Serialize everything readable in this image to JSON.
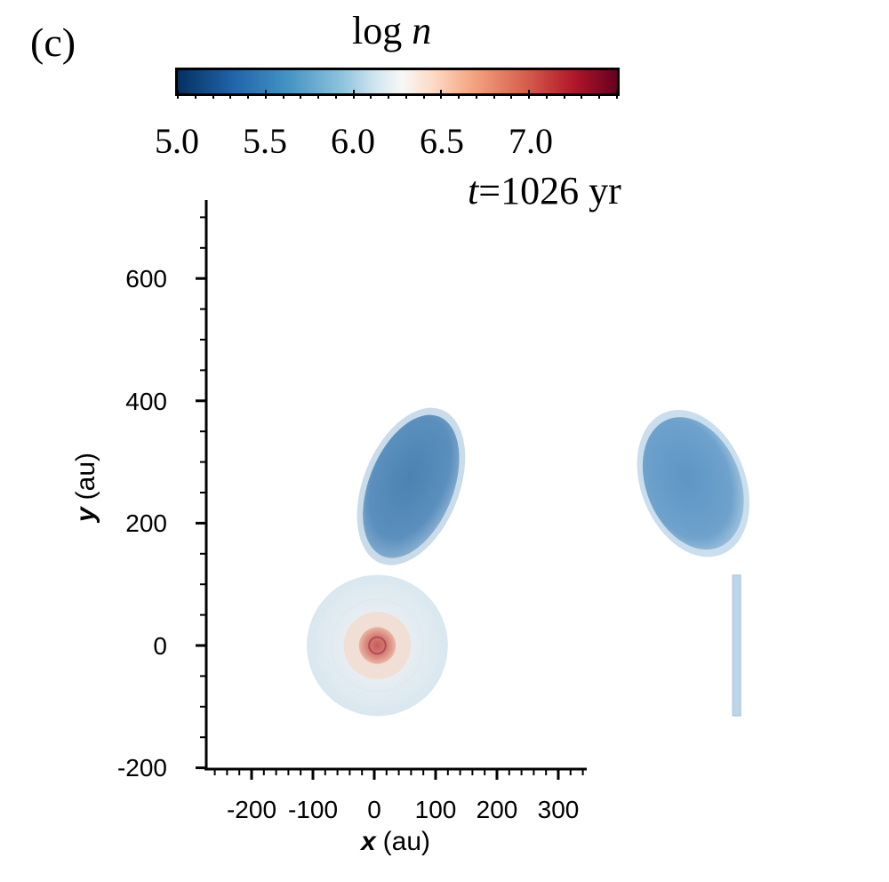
{
  "panel_label": "(c)",
  "colorbar": {
    "label_prefix": "log",
    "label_var": "n",
    "ticks": [
      "5.0",
      "5.5",
      "6.0",
      "6.5",
      "7.0"
    ],
    "range": [
      5.0,
      7.5
    ],
    "colors": [
      "#053061",
      "#2166ac",
      "#4393c3",
      "#92c5de",
      "#d1e5f0",
      "#f7f7f7",
      "#fddbc7",
      "#f4a582",
      "#d6604d",
      "#b2182b",
      "#67001f"
    ]
  },
  "time_label": {
    "var": "t",
    "eq": "=",
    "value": "1026 yr"
  },
  "chart_data": {
    "type": "heatmap",
    "title": "",
    "xlabel_var": "x",
    "xlabel_unit": "(au)",
    "ylabel_var": "y",
    "ylabel_unit": "(au)",
    "xlim": [
      -275,
      345
    ],
    "ylim": [
      -200,
      720
    ],
    "xticks": [
      -200,
      -100,
      0,
      100,
      200,
      300
    ],
    "xtick_labels": [
      "-200",
      "-100",
      "0",
      "100",
      "200",
      "300"
    ],
    "yticks": [
      -200,
      0,
      200,
      400,
      600
    ],
    "ytick_labels": [
      "-200",
      "0",
      "200",
      "400",
      "600"
    ],
    "features": [
      {
        "name": "central-envelope",
        "center": [
          5,
          0
        ],
        "radius": 115,
        "log_n": 6.0
      },
      {
        "name": "inner-halo",
        "center": [
          5,
          0
        ],
        "radius": 55,
        "log_n": 6.3
      },
      {
        "name": "central-core",
        "center": [
          5,
          0
        ],
        "radius": 30,
        "log_n": 6.8
      },
      {
        "name": "northern-lobe",
        "center": [
          60,
          260
        ],
        "rx": 78,
        "ry": 150,
        "log_n": 5.3
      },
      {
        "name": "detached-lobe",
        "center": [
          520,
          265
        ],
        "rx": 85,
        "ry": 125,
        "log_n": 5.5
      },
      {
        "name": "detached-stem",
        "x": 590,
        "y_range": [
          -115,
          115
        ],
        "log_n": 5.8
      }
    ]
  }
}
